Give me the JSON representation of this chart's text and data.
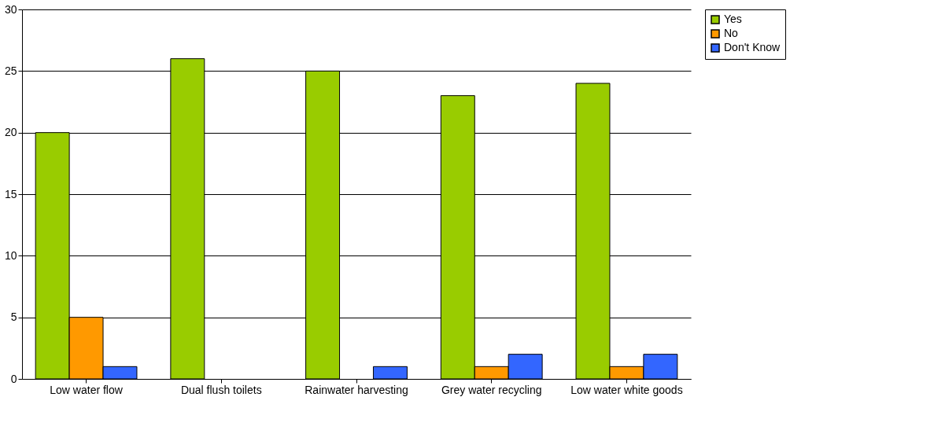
{
  "chart_data": {
    "type": "bar",
    "categories": [
      "Low water flow",
      "Dual flush toilets",
      "Rainwater harvesting",
      "Grey water recycling",
      "Low water white goods"
    ],
    "series": [
      {
        "name": "Yes",
        "color": "#99cc00",
        "values": [
          20,
          26,
          25,
          23,
          24
        ]
      },
      {
        "name": "No",
        "color": "#ff9900",
        "values": [
          5,
          null,
          null,
          1,
          1
        ]
      },
      {
        "name": "Don't Know",
        "color": "#3366ff",
        "values": [
          1,
          null,
          1,
          2,
          2
        ]
      }
    ],
    "ylim": [
      0,
      30
    ],
    "yticks": [
      0,
      5,
      10,
      15,
      20,
      25,
      30
    ],
    "grid": "y",
    "legend": "right"
  }
}
